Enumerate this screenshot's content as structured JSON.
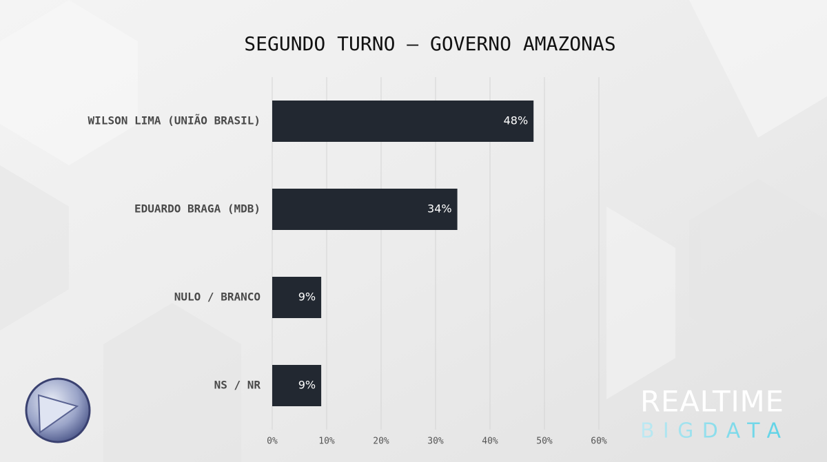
{
  "chart_data": {
    "type": "bar",
    "orientation": "horizontal",
    "title": "SEGUNDO TURNO – GOVERNO AMAZONAS",
    "categories": [
      "WILSON LIMA (UNIÃO BRASIL)",
      "EDUARDO BRAGA (MDB)",
      "NULO / BRANCO",
      "NS / NR"
    ],
    "values": [
      48,
      34,
      9,
      9
    ],
    "value_labels": [
      "48%",
      "34%",
      "9%",
      "9%"
    ],
    "color": "#222831",
    "xlim": [
      0,
      60
    ],
    "xticks": [
      {
        "value": 0,
        "label": "0%"
      },
      {
        "value": 10,
        "label": "10%"
      },
      {
        "value": 20,
        "label": "20%"
      },
      {
        "value": 30,
        "label": "30%"
      },
      {
        "value": 40,
        "label": "40%"
      },
      {
        "value": 50,
        "label": "50%"
      },
      {
        "value": 60,
        "label": "60%"
      }
    ],
    "grid": true
  },
  "logo_text": [
    "REALTIME",
    "BIGDATA"
  ]
}
